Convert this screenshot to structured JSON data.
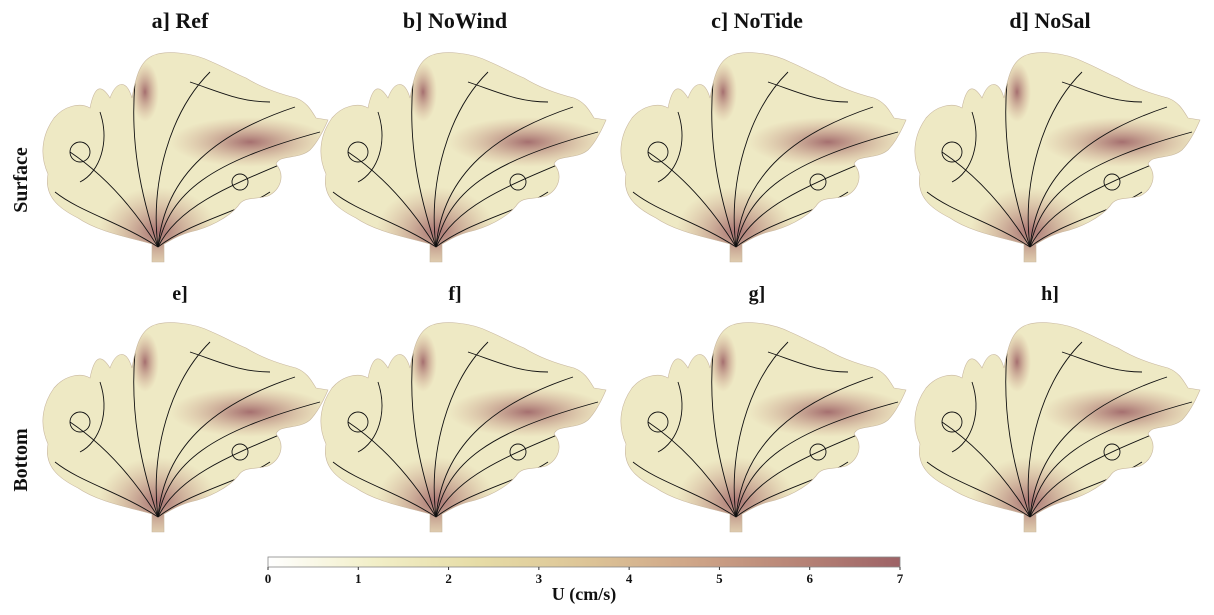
{
  "panels": [
    {
      "label": "a] Ref"
    },
    {
      "label": "b] NoWind"
    },
    {
      "label": "c] NoTide"
    },
    {
      "label": "d] NoSal"
    },
    {
      "label": "e]"
    },
    {
      "label": "f]"
    },
    {
      "label": "g]"
    },
    {
      "label": "h]"
    }
  ],
  "row_labels": [
    "Surface",
    "Bottom"
  ],
  "colorbar": {
    "label": "U (cm/s)",
    "lim": [
      0,
      7
    ],
    "ticks": [
      0,
      1,
      2,
      3,
      4,
      5,
      6,
      7
    ],
    "colors": [
      "#ffffff",
      "#f2efc8",
      "#e6dca6",
      "#ddc597",
      "#cfa688",
      "#b88577",
      "#9d6266"
    ]
  }
}
